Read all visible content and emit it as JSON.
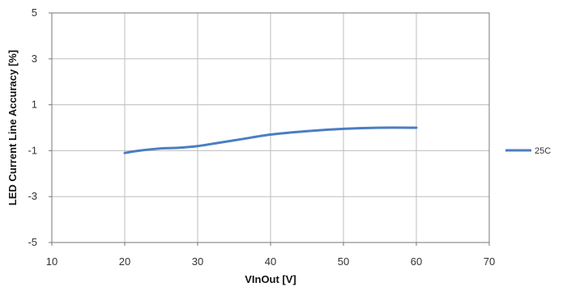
{
  "chart_data": {
    "type": "line",
    "xlabel": "VInOut [V]",
    "ylabel": "LED Current Line Accuracy [%]",
    "xlim": [
      10,
      70
    ],
    "ylim": [
      -5,
      5
    ],
    "xticks": [
      10,
      20,
      30,
      40,
      50,
      60,
      70
    ],
    "yticks": [
      -5,
      -3,
      -1,
      1,
      3,
      5
    ],
    "grid": true,
    "legend_position": "right",
    "series": [
      {
        "name": "25C",
        "color": "#4a7ec2",
        "x": [
          20,
          22,
          25,
          27,
          30,
          33,
          36,
          40,
          45,
          50,
          55,
          60
        ],
        "y": [
          -1.1,
          -1.0,
          -0.9,
          -0.88,
          -0.8,
          -0.65,
          -0.5,
          -0.3,
          -0.15,
          -0.05,
          0.0,
          0.0
        ]
      }
    ]
  }
}
